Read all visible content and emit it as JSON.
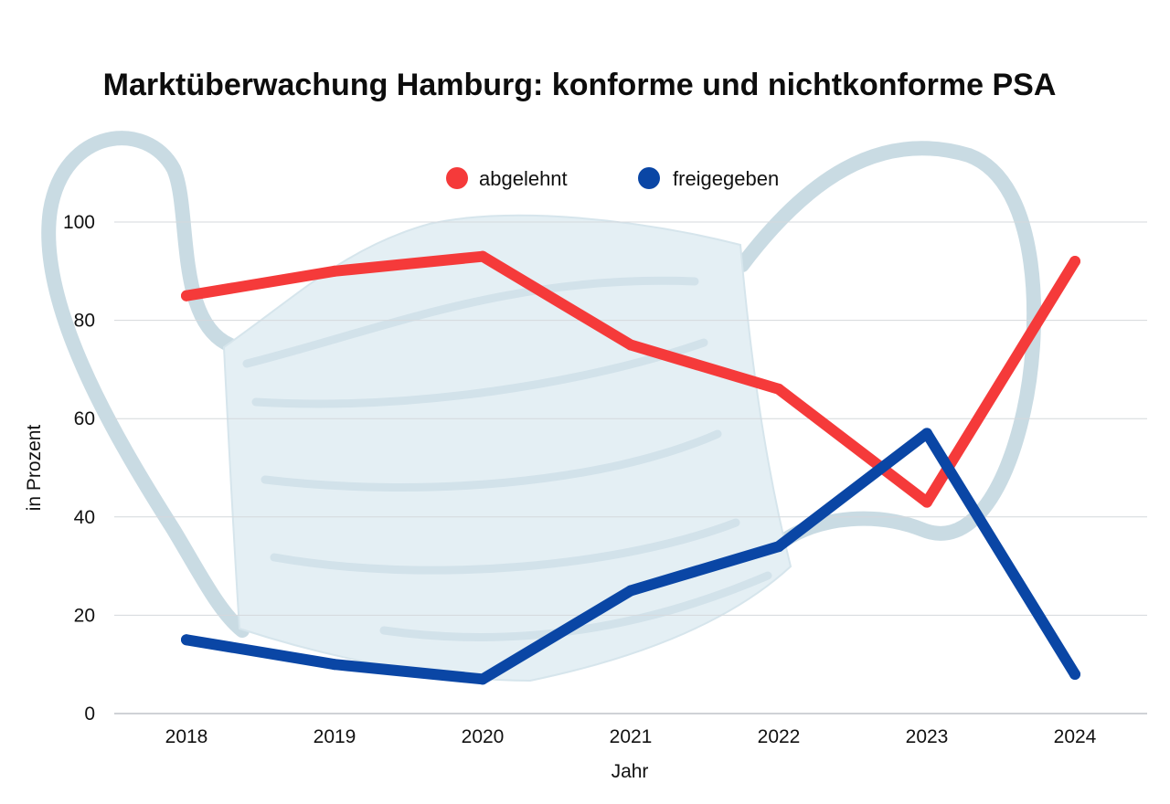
{
  "chart_data": {
    "type": "line",
    "title": "Marktüberwachung Hamburg: konforme und nichtkonforme PSA",
    "xlabel": "Jahr",
    "ylabel": "in Prozent",
    "categories": [
      "2018",
      "2019",
      "2020",
      "2021",
      "2022",
      "2023",
      "2024"
    ],
    "ylim": [
      0,
      100
    ],
    "yticks": [
      0,
      20,
      40,
      60,
      80,
      100
    ],
    "grid": true,
    "legend_position": "top-center",
    "series": [
      {
        "name": "abgelehnt",
        "color": "#f53a3a",
        "values": [
          85,
          90,
          93,
          75,
          66,
          43,
          92
        ]
      },
      {
        "name": "freigegeben",
        "color": "#0a46a5",
        "values": [
          15,
          10,
          7,
          25,
          34,
          57,
          8
        ]
      }
    ],
    "background_illustration": "face-mask"
  }
}
